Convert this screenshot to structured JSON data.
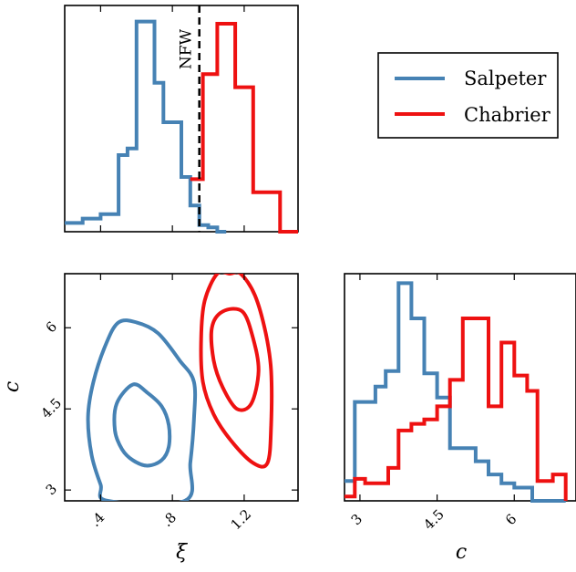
{
  "colors": {
    "salpeter": "#4682b4",
    "chabrier": "#ee1111",
    "reference": "#000000"
  },
  "legend": {
    "placement": "top-right",
    "entries": [
      {
        "label": "Salpeter",
        "color": "#4682b4"
      },
      {
        "label": "Chabrier",
        "color": "#ee1111"
      }
    ]
  },
  "chart_data": [
    {
      "id": "xi_hist",
      "type": "histogram",
      "xlim": [
        0.2,
        1.5
      ],
      "ylim": [
        0,
        1
      ],
      "xticks": [
        0.4,
        0.8,
        1.2
      ],
      "xlabel": "",
      "ylabel": "",
      "reference_line": {
        "x": 0.95,
        "label": "NFW"
      },
      "series": [
        {
          "name": "Salpeter",
          "color": "#4682b4",
          "edges": [
            0.2,
            0.3,
            0.4,
            0.5,
            0.55,
            0.6,
            0.65,
            0.7,
            0.75,
            0.8,
            0.85,
            0.9,
            0.95,
            1.0,
            1.05,
            1.1
          ],
          "values": [
            0.04,
            0.06,
            0.08,
            0.35,
            0.38,
            0.96,
            0.96,
            0.68,
            0.5,
            0.5,
            0.25,
            0.12,
            0.03,
            0.02,
            0.0
          ]
        },
        {
          "name": "Chabrier",
          "color": "#ee1111",
          "edges": [
            0.9,
            0.97,
            1.0,
            1.05,
            1.1,
            1.15,
            1.2,
            1.25,
            1.3,
            1.4,
            1.5
          ],
          "values": [
            0.24,
            0.72,
            0.72,
            0.95,
            0.95,
            0.66,
            0.66,
            0.18,
            0.18,
            0.0
          ]
        }
      ]
    },
    {
      "id": "xi_c_contour",
      "type": "contour",
      "xlim": [
        0.2,
        1.5
      ],
      "ylim": [
        2.8,
        7.0
      ],
      "xticks": [
        0.4,
        0.8,
        1.2
      ],
      "xticklabels": [
        ".4",
        ".8",
        "1.2"
      ],
      "yticks": [
        3,
        4.5,
        6
      ],
      "yticklabels": [
        "3",
        "4.5",
        "6"
      ],
      "xlabel": "ξ",
      "ylabel": "c",
      "contours": [
        {
          "name": "Salpeter",
          "level": "inner",
          "color": "#4682b4",
          "points": [
            [
              0.58,
              4.95
            ],
            [
              0.49,
              4.6
            ],
            [
              0.48,
              4.1
            ],
            [
              0.52,
              3.75
            ],
            [
              0.58,
              3.55
            ],
            [
              0.66,
              3.45
            ],
            [
              0.74,
              3.55
            ],
            [
              0.78,
              3.8
            ],
            [
              0.78,
              4.2
            ],
            [
              0.74,
              4.55
            ],
            [
              0.66,
              4.8
            ]
          ]
        },
        {
          "name": "Salpeter",
          "level": "outer",
          "color": "#4682b4",
          "points": [
            [
              0.5,
              6.1
            ],
            [
              0.43,
              5.7
            ],
            [
              0.36,
              5.0
            ],
            [
              0.33,
              4.35
            ],
            [
              0.35,
              3.65
            ],
            [
              0.4,
              3.1
            ],
            [
              0.44,
              2.8
            ],
            [
              0.87,
              2.8
            ],
            [
              0.9,
              3.5
            ],
            [
              0.92,
              4.3
            ],
            [
              0.92,
              5.0
            ],
            [
              0.84,
              5.4
            ],
            [
              0.72,
              5.9
            ],
            [
              0.6,
              6.1
            ]
          ]
        },
        {
          "name": "Chabrier",
          "level": "inner",
          "color": "#ee1111",
          "points": [
            [
              1.08,
              6.3
            ],
            [
              1.02,
              6.0
            ],
            [
              1.03,
              5.4
            ],
            [
              1.08,
              4.9
            ],
            [
              1.16,
              4.5
            ],
            [
              1.24,
              4.6
            ],
            [
              1.28,
              5.2
            ],
            [
              1.25,
              5.8
            ],
            [
              1.19,
              6.3
            ]
          ]
        },
        {
          "name": "Chabrier",
          "level": "outer",
          "color": "#ee1111",
          "points": [
            [
              1.12,
              7.0
            ],
            [
              1.05,
              7.0
            ],
            [
              0.98,
              6.5
            ],
            [
              0.96,
              5.8
            ],
            [
              0.97,
              5.0
            ],
            [
              1.03,
              4.4
            ],
            [
              1.13,
              3.9
            ],
            [
              1.25,
              3.5
            ],
            [
              1.33,
              3.5
            ],
            [
              1.35,
              4.2
            ],
            [
              1.35,
              5.2
            ],
            [
              1.32,
              5.9
            ],
            [
              1.26,
              6.6
            ],
            [
              1.18,
              7.0
            ]
          ]
        }
      ]
    },
    {
      "id": "c_hist",
      "type": "histogram",
      "xlim": [
        2.7,
        7.2
      ],
      "ylim": [
        0,
        1
      ],
      "xticks": [
        3,
        4.5,
        6
      ],
      "xticklabels": [
        "3",
        "4.5",
        "6"
      ],
      "xlabel": "c",
      "ylabel": "",
      "series": [
        {
          "name": "Salpeter",
          "color": "#4682b4",
          "edges": [
            2.7,
            2.9,
            3.1,
            3.3,
            3.5,
            3.75,
            4.0,
            4.25,
            4.5,
            4.75,
            5.0,
            5.25,
            5.5,
            5.75,
            6.0,
            6.35,
            7.0
          ],
          "values": [
            0.09,
            0.45,
            0.45,
            0.52,
            0.59,
            0.99,
            0.83,
            0.58,
            0.47,
            0.24,
            0.24,
            0.18,
            0.12,
            0.08,
            0.06,
            0.0
          ]
        },
        {
          "name": "Chabrier",
          "color": "#ee1111",
          "edges": [
            2.7,
            2.9,
            3.1,
            3.3,
            3.55,
            3.75,
            4.0,
            4.25,
            4.5,
            4.75,
            5.0,
            5.25,
            5.5,
            5.75,
            6.0,
            6.25,
            6.45,
            6.75,
            7.0
          ],
          "values": [
            0.02,
            0.1,
            0.08,
            0.08,
            0.15,
            0.32,
            0.35,
            0.37,
            0.43,
            0.55,
            0.83,
            0.83,
            0.43,
            0.72,
            0.57,
            0.5,
            0.09,
            0.12,
            0.0
          ]
        }
      ]
    }
  ]
}
